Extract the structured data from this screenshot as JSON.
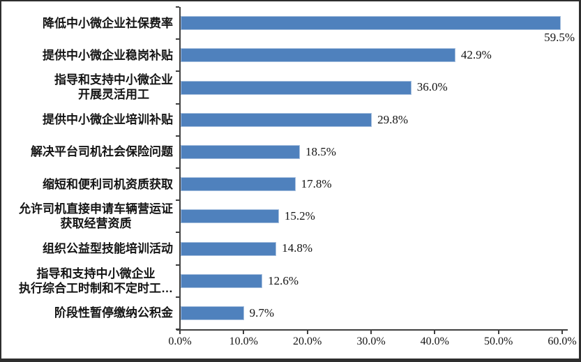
{
  "chart_data": {
    "type": "bar",
    "orientation": "horizontal",
    "title": "",
    "categories": [
      "降低中小微企业社保费率",
      "提供中小微企业稳岗补贴",
      "指导和支持中小微企业\n开展灵活用工",
      "提供中小微企业培训补贴",
      "解决平台司机社会保险问题",
      "缩短和便利司机资质获取",
      "允许司机直接申请车辆营运证\n获取经营资质",
      "组织公益型技能培训活动",
      "指导和支持中小微企业\n执行综合工时制和不定时工…",
      "阶段性暂停缴纳公积金"
    ],
    "values": [
      59.5,
      42.9,
      36.0,
      29.8,
      18.5,
      17.8,
      15.2,
      14.8,
      12.6,
      9.7
    ],
    "value_labels": [
      "59.5%",
      "42.9%",
      "36.0%",
      "29.8%",
      "18.5%",
      "17.8%",
      "15.2%",
      "14.8%",
      "12.6%",
      "9.7%"
    ],
    "x_ticks": [
      "0.0%",
      "10.0%",
      "20.0%",
      "30.0%",
      "40.0%",
      "50.0%",
      "60.0%"
    ],
    "xlim": [
      0,
      60
    ],
    "grid": false,
    "legend": false,
    "bar_color": "#4F81BD",
    "bar_border_color": "#A6BFDE",
    "axis_color": "#3F3F3F",
    "text_color": "#141414"
  }
}
